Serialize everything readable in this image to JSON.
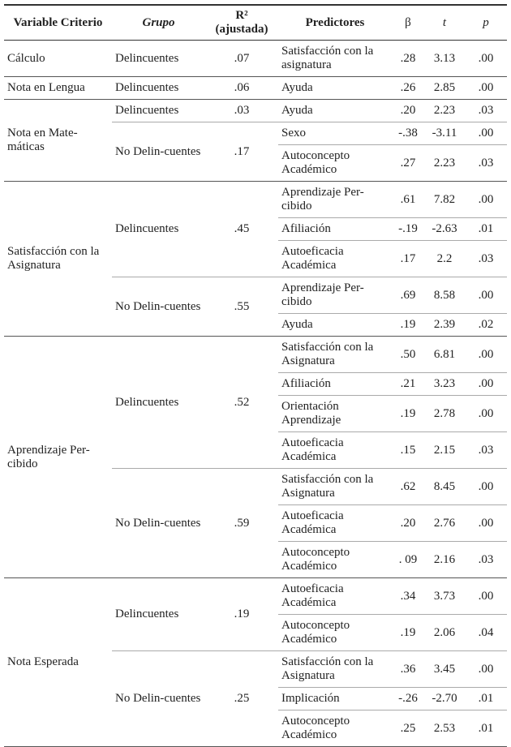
{
  "table": {
    "header": [
      "Variable Criterio",
      "Grupo",
      "R² (ajustada)",
      "Predictores",
      "β",
      "t",
      "p"
    ],
    "criteria": [
      {
        "name": "Cálculo",
        "groups": [
          {
            "group": "Delincuentes",
            "r2": ".07",
            "predictors": [
              [
                "Satisfacción con la asignatura",
                ".28",
                "3.13",
                ".00"
              ]
            ]
          }
        ]
      },
      {
        "name": "Nota en Lengua",
        "groups": [
          {
            "group": "Delincuentes",
            "r2": ".06",
            "predictors": [
              [
                "Ayuda",
                ".26",
                "2.85",
                ".00"
              ]
            ]
          }
        ]
      },
      {
        "name": "Nota en Mate-máticas",
        "groups": [
          {
            "group": "Delincuentes",
            "r2": ".03",
            "predictors": [
              [
                "Ayuda",
                ".20",
                "2.23",
                ".03"
              ]
            ]
          },
          {
            "group": "No Delin-cuentes",
            "r2": ".17",
            "predictors": [
              [
                "Sexo",
                "-.38",
                "-3.11",
                ".00"
              ],
              [
                "Autoconcepto Académico",
                ".27",
                "2.23",
                ".03"
              ]
            ]
          }
        ]
      },
      {
        "name": "Satisfacción con la Asignatura",
        "groups": [
          {
            "group": "Delincuentes",
            "r2": ".45",
            "predictors": [
              [
                "Aprendizaje Per-cibido",
                ".61",
                "7.82",
                ".00"
              ],
              [
                "Afiliación",
                "-.19",
                "-2.63",
                ".01"
              ],
              [
                "Autoeficacia Académica",
                ".17",
                "2.2",
                ".03"
              ]
            ]
          },
          {
            "group": "No Delin-cuentes",
            "r2": ".55",
            "predictors": [
              [
                "Aprendizaje Per-cibido",
                ".69",
                "8.58",
                ".00"
              ],
              [
                "Ayuda",
                ".19",
                "2.39",
                ".02"
              ]
            ]
          }
        ]
      },
      {
        "name": "Aprendizaje Per-cibido",
        "groups": [
          {
            "group": "Delincuentes",
            "r2": ".52",
            "predictors": [
              [
                "Satisfacción con la Asignatura",
                ".50",
                "6.81",
                ".00"
              ],
              [
                "Afiliación",
                ".21",
                "3.23",
                ".00"
              ],
              [
                "Orientación Aprendizaje",
                ".19",
                "2.78",
                ".00"
              ],
              [
                "Autoeficacia Académica",
                ".15",
                "2.15",
                ".03"
              ]
            ]
          },
          {
            "group": "No Delin-cuentes",
            "r2": ".59",
            "predictors": [
              [
                "Satisfacción con la Asignatura",
                ".62",
                "8.45",
                ".00"
              ],
              [
                "Autoeficacia Académica",
                ".20",
                "2.76",
                ".00"
              ],
              [
                "Autoconcepto Académico",
                ". 09",
                "2.16",
                ".03"
              ]
            ]
          }
        ]
      },
      {
        "name": "Nota Esperada",
        "groups": [
          {
            "group": "Delincuentes",
            "r2": ".19",
            "predictors": [
              [
                "Autoeficacia Académica",
                ".34",
                "3.73",
                ".00"
              ],
              [
                "Autoconcepto Académico",
                ".19",
                "2.06",
                ".04"
              ]
            ]
          },
          {
            "group": "No Delin-cuentes",
            "r2": ".25",
            "predictors": [
              [
                "Satisfacción con la Asignatura",
                ".36",
                "3.45",
                ".00"
              ],
              [
                "Implicación",
                "-.26",
                "-2.70",
                ".01"
              ],
              [
                "Autoconcepto Académico",
                ".25",
                "2.53",
                ".01"
              ]
            ]
          }
        ]
      }
    ]
  }
}
